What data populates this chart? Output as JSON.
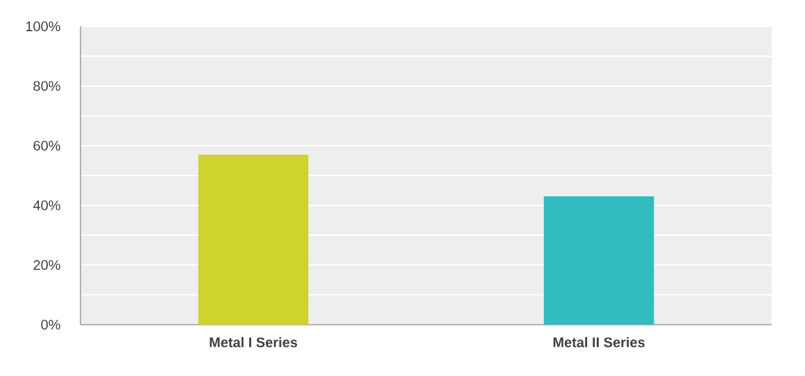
{
  "chart_data": {
    "type": "bar",
    "categories": [
      "Metal I Series",
      "Metal II Series"
    ],
    "values": [
      57,
      43
    ],
    "colors": [
      "#cfd42a",
      "#33bcbe"
    ],
    "ylim": [
      0,
      100
    ],
    "yticks": [
      {
        "value": 0,
        "label": "0%"
      },
      {
        "value": 10,
        "label": null
      },
      {
        "value": 20,
        "label": "20%"
      },
      {
        "value": 30,
        "label": null
      },
      {
        "value": 40,
        "label": "40%"
      },
      {
        "value": 50,
        "label": null
      },
      {
        "value": 60,
        "label": "60%"
      },
      {
        "value": 70,
        "label": null
      },
      {
        "value": 80,
        "label": "80%"
      },
      {
        "value": 90,
        "label": null
      },
      {
        "value": 100,
        "label": "100%"
      }
    ],
    "grid": true
  }
}
